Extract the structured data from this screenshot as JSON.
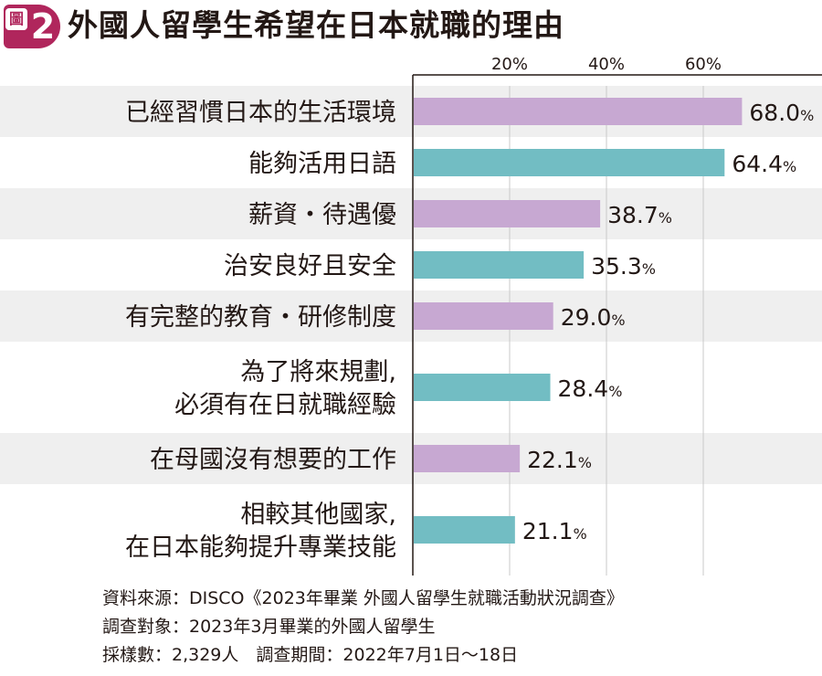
{
  "header": {
    "badge_label": "圖",
    "badge_number": "2",
    "title": "外國人留學生希望在日本就職的理由"
  },
  "chart_data": {
    "type": "bar",
    "orientation": "horizontal",
    "title": "外國人留學生希望在日本就職的理由",
    "xlim": [
      0,
      80
    ],
    "xticks": [
      20,
      40,
      60
    ],
    "xtick_labels": [
      "20%",
      "40%",
      "60%"
    ],
    "grid": true,
    "categories": [
      [
        "已經習慣日本的生活環境"
      ],
      [
        "能夠活用日語"
      ],
      [
        "薪資・待遇優"
      ],
      [
        "治安良好且安全"
      ],
      [
        "有完整的教育・研修制度"
      ],
      [
        "為了將來規劃,",
        "必須有在日就職經驗"
      ],
      [
        "在母國沒有想要的工作"
      ],
      [
        "相較其他國家,",
        "在日本能夠提升專業技能"
      ]
    ],
    "values": [
      68.0,
      64.4,
      38.7,
      35.3,
      29.0,
      28.4,
      22.1,
      21.1
    ],
    "value_labels": [
      "68.0",
      "64.4",
      "38.7",
      "35.3",
      "29.0",
      "28.4",
      "22.1",
      "21.1"
    ],
    "unit": "%",
    "colors": [
      "#c7a8d2",
      "#72bdc3"
    ],
    "band_color": "#efefef"
  },
  "footer": {
    "source": "資料來源：DISCO《2023年畢業 外國人留學生就職活動狀況調查》",
    "subjects": "調查對象：2023年3月畢業的外國人留學生",
    "sample": "採樣數：2,329人　調查期間：2022年7月1日～18日"
  }
}
